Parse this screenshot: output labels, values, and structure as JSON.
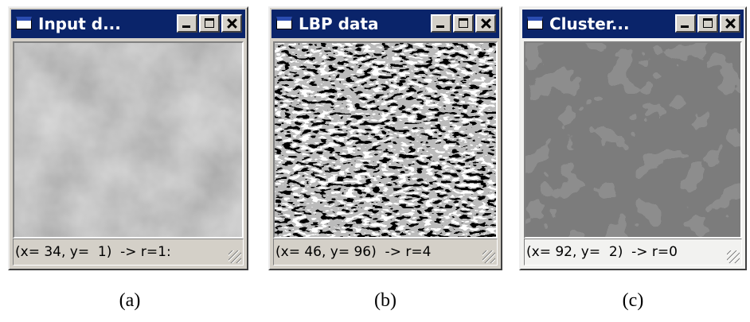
{
  "windows": [
    {
      "title": "Input d...",
      "status": "(x= 34, y=  1)  -> r=1:",
      "caption": "(a)"
    },
    {
      "title": "LBP data",
      "status": "(x= 46, y= 96)  -> r=4",
      "caption": "(b)"
    },
    {
      "title": "Cluster...",
      "status": "(x= 92, y=  2)  -> r=0",
      "caption": "(c)"
    }
  ]
}
